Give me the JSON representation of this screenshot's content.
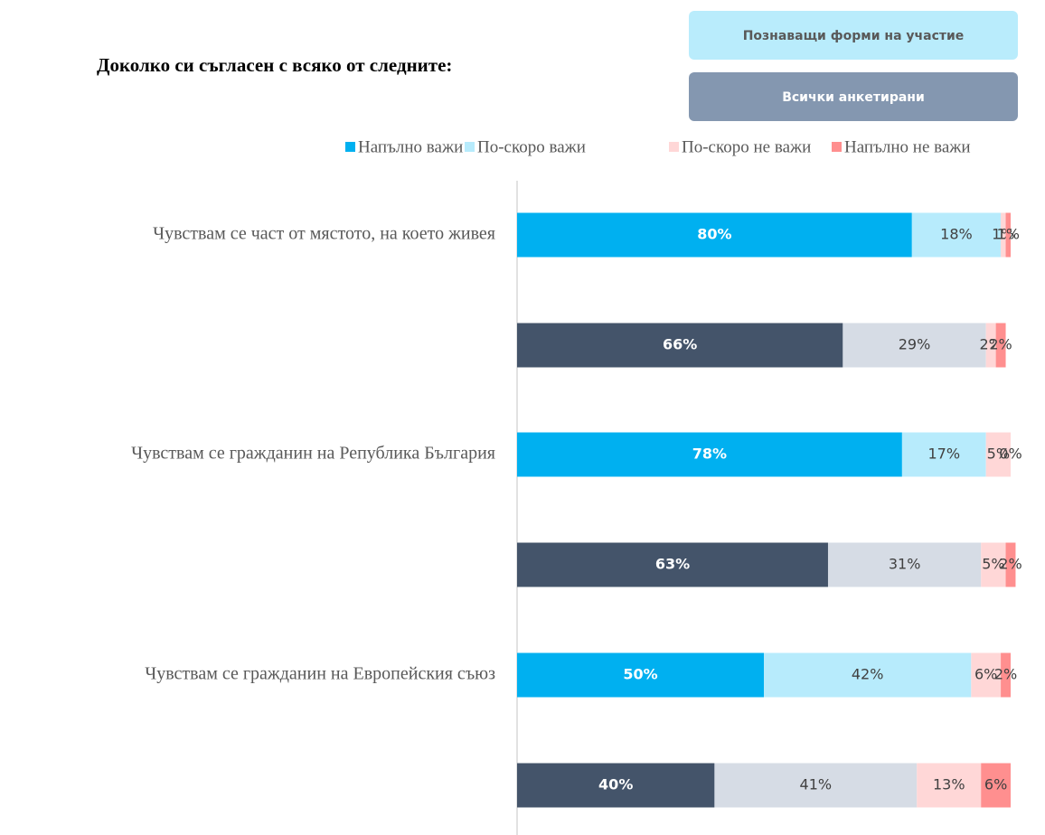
{
  "chart_data": {
    "type": "stacked-bar-horizontal",
    "title": "Доколко си съгласен с всяко от следните:",
    "categories": [
      "Чувствам се част от мястото, на което живея",
      null,
      "Чувствам се гражданин на Република България",
      null,
      "Чувствам се гражданин на Европейския съюз",
      null
    ],
    "groups": [
      {
        "name": "Познаващи форми на участие",
        "button_color": "#b9ecfc",
        "colors": [
          "#00b0f0",
          "#b7ebfc",
          "#ffd7d7",
          "#ff8f8f"
        ]
      },
      {
        "name": "Всички анкетирани",
        "button_color": "#8497b0",
        "colors": [
          "#44546a",
          "#d6dce5",
          "#ffd7d7",
          "#ff8f8f"
        ]
      }
    ],
    "row_groups": [
      0,
      1,
      0,
      1,
      0,
      1
    ],
    "series": [
      {
        "name": "Напълно важи",
        "color": "#00b0f0",
        "values": [
          80,
          66,
          78,
          63,
          50,
          40
        ],
        "value_labels": [
          "80%",
          "66%",
          "78%",
          "63%",
          "50%",
          "40%"
        ]
      },
      {
        "name": "По-скоро важи",
        "color": "#b7ebfc",
        "values": [
          18,
          29,
          17,
          31,
          42,
          41
        ],
        "value_labels": [
          "18%",
          "29%",
          "17%",
          "31%",
          "42%",
          "41%"
        ]
      },
      {
        "name": "По-скоро не важи",
        "color": "#ffd7d7",
        "values": [
          1,
          2,
          5,
          5,
          6,
          13
        ],
        "value_labels": [
          "1%",
          "2%",
          "5%",
          "5%",
          "6%",
          "13%"
        ]
      },
      {
        "name": "Напълно не важи",
        "color": "#ff8f8f",
        "values": [
          1,
          2,
          0,
          2,
          2,
          6
        ],
        "value_labels": [
          "1%",
          "2%",
          "0%",
          "2%",
          "2%",
          "6%"
        ]
      }
    ],
    "xlim": [
      0,
      100
    ],
    "legend": "top-right"
  }
}
